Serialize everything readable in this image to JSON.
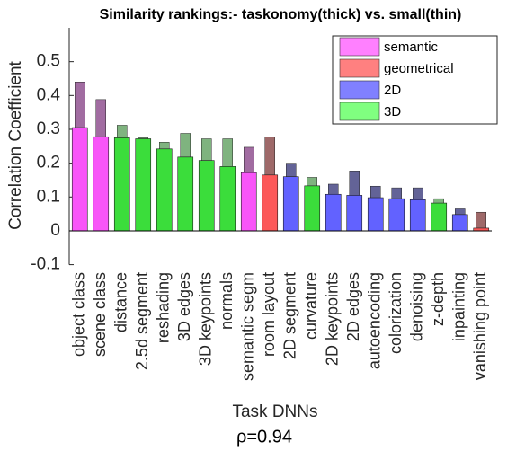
{
  "chart_data": {
    "type": "bar",
    "title": "Similarity rankings:- taskonomy(thick) vs. small(thin)",
    "x_label": "Task DNNs",
    "y_label": "Correlation Coefficient",
    "annotation": "ρ=0.94",
    "categories": [
      "object class",
      "scene class",
      "distance",
      "2.5d segment",
      "reshading",
      "3D edges",
      "3D keypoints",
      "normals",
      "semantic segm",
      "room layout",
      "2D segment",
      "curvature",
      "2D keypoints",
      "2D edges",
      "autoencoding",
      "colorization",
      "denoising",
      "z-depth",
      "inpainting",
      "vanishing point"
    ],
    "thick_values": [
      0.305,
      0.278,
      0.275,
      0.272,
      0.242,
      0.218,
      0.208,
      0.19,
      0.172,
      0.165,
      0.16,
      0.133,
      0.108,
      0.105,
      0.098,
      0.095,
      0.092,
      0.082,
      0.048,
      0.008
    ],
    "thin_values": [
      0.44,
      0.388,
      0.312,
      0.275,
      0.262,
      0.288,
      0.272,
      0.272,
      0.247,
      0.278,
      0.2,
      0.158,
      0.138,
      0.177,
      0.132,
      0.127,
      0.127,
      0.095,
      0.065,
      0.055
    ],
    "category_groups": [
      0,
      0,
      3,
      3,
      3,
      3,
      3,
      3,
      0,
      1,
      2,
      3,
      2,
      2,
      2,
      2,
      2,
      3,
      2,
      1
    ],
    "legend": [
      {
        "name": "semantic",
        "color": "#ff80ff"
      },
      {
        "name": "geometrical",
        "color": "#ff8080"
      },
      {
        "name": "2D",
        "color": "#8080ff"
      },
      {
        "name": "3D",
        "color": "#80ff80"
      }
    ],
    "ylim": [
      -0.1,
      0.6
    ],
    "yticks": [
      -0.1,
      0,
      0.1,
      0.2,
      0.3,
      0.4,
      0.5
    ]
  }
}
